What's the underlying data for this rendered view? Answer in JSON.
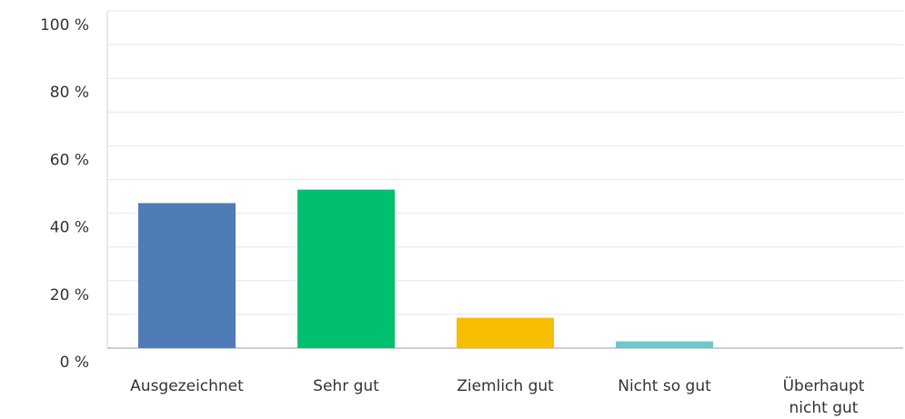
{
  "chart_data": {
    "type": "bar",
    "categories": [
      "Ausgezeichnet",
      "Sehr gut",
      "Ziemlich gut",
      "Nicht so gut",
      "Überhaupt nicht gut"
    ],
    "values": [
      43,
      47,
      9,
      2,
      0
    ],
    "colors": [
      "#4f7cb6",
      "#00bf6f",
      "#f7bd00",
      "#6bc8cd",
      "#8f8f8f"
    ],
    "ylim": [
      0,
      100
    ],
    "yticks": [
      {
        "value": 0,
        "label": "0 %"
      },
      {
        "value": 20,
        "label": "20 %"
      },
      {
        "value": 40,
        "label": "40 %"
      },
      {
        "value": 60,
        "label": "60 %"
      },
      {
        "value": 80,
        "label": "80 %"
      },
      {
        "value": 100,
        "label": "100 %"
      }
    ],
    "minor_yticks": [
      10,
      30,
      50,
      70,
      90
    ],
    "grid": true
  }
}
